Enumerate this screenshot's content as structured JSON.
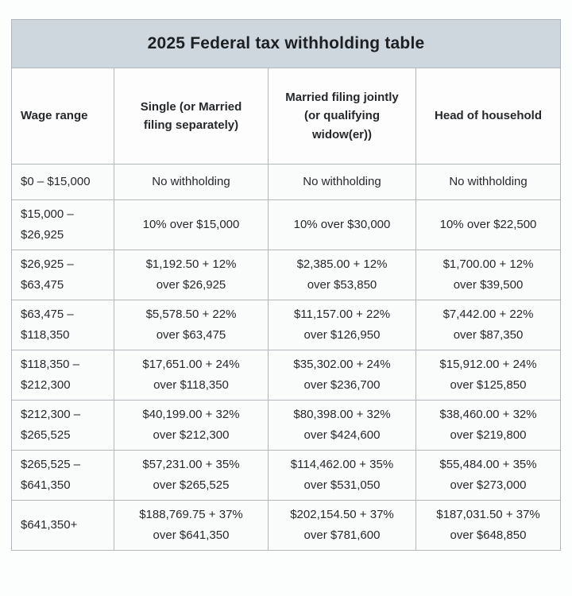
{
  "chart_data": {
    "type": "table",
    "title": "2025 Federal tax withholding table",
    "columns": [
      {
        "id": "wage-range",
        "lines": [
          "Wage range"
        ]
      },
      {
        "id": "single-or-married-filing-separately",
        "lines": [
          "Single (or Married",
          "filing separately)"
        ]
      },
      {
        "id": "married-filing-jointly",
        "lines": [
          "Married filing jointly",
          "(or qualifying",
          "widow(er))"
        ]
      },
      {
        "id": "head-of-household",
        "lines": [
          "Head of household"
        ]
      }
    ],
    "rows": [
      [
        [
          "$0 – $15,000"
        ],
        [
          "No withholding"
        ],
        [
          "No withholding"
        ],
        [
          "No withholding"
        ]
      ],
      [
        [
          "$15,000 –",
          "$26,925"
        ],
        [
          "10% over $15,000"
        ],
        [
          "10% over $30,000"
        ],
        [
          "10% over $22,500"
        ]
      ],
      [
        [
          "$26,925 –",
          "$63,475"
        ],
        [
          "$1,192.50 + 12%",
          "over $26,925"
        ],
        [
          "$2,385.00 + 12%",
          "over $53,850"
        ],
        [
          "$1,700.00 + 12%",
          "over $39,500"
        ]
      ],
      [
        [
          "$63,475 –",
          "$118,350"
        ],
        [
          "$5,578.50 + 22%",
          "over $63,475"
        ],
        [
          "$11,157.00 + 22%",
          "over $126,950"
        ],
        [
          "$7,442.00 + 22%",
          "over $87,350"
        ]
      ],
      [
        [
          "$118,350 –",
          "$212,300"
        ],
        [
          "$17,651.00 + 24%",
          "over $118,350"
        ],
        [
          "$35,302.00 + 24%",
          "over $236,700"
        ],
        [
          "$15,912.00 + 24%",
          "over $125,850"
        ]
      ],
      [
        [
          "$212,300 –",
          "$265,525"
        ],
        [
          "$40,199.00 + 32%",
          "over $212,300"
        ],
        [
          "$80,398.00 + 32%",
          "over $424,600"
        ],
        [
          "$38,460.00 + 32%",
          "over $219,800"
        ]
      ],
      [
        [
          "$265,525 –",
          "$641,350"
        ],
        [
          "$57,231.00 + 35%",
          "over $265,525"
        ],
        [
          "$114,462.00 + 35%",
          "over $531,050"
        ],
        [
          "$55,484.00 + 35%",
          "over $273,000"
        ]
      ],
      [
        [
          "$641,350+"
        ],
        [
          "$188,769.75 + 37%",
          "over $641,350"
        ],
        [
          "$202,154.50 + 37%",
          "over $781,600"
        ],
        [
          "$187,031.50 + 37%",
          "over $648,850"
        ]
      ]
    ]
  },
  "colors": {
    "title_band": "#cdd7dd",
    "header_cell_background": "#fdfdfd",
    "body_cell_background": "#fafbfb",
    "border": "#b2b8bc",
    "outer_border": "#9ba2a6",
    "text": "#26292c",
    "page_background": "#fcfdfd"
  }
}
